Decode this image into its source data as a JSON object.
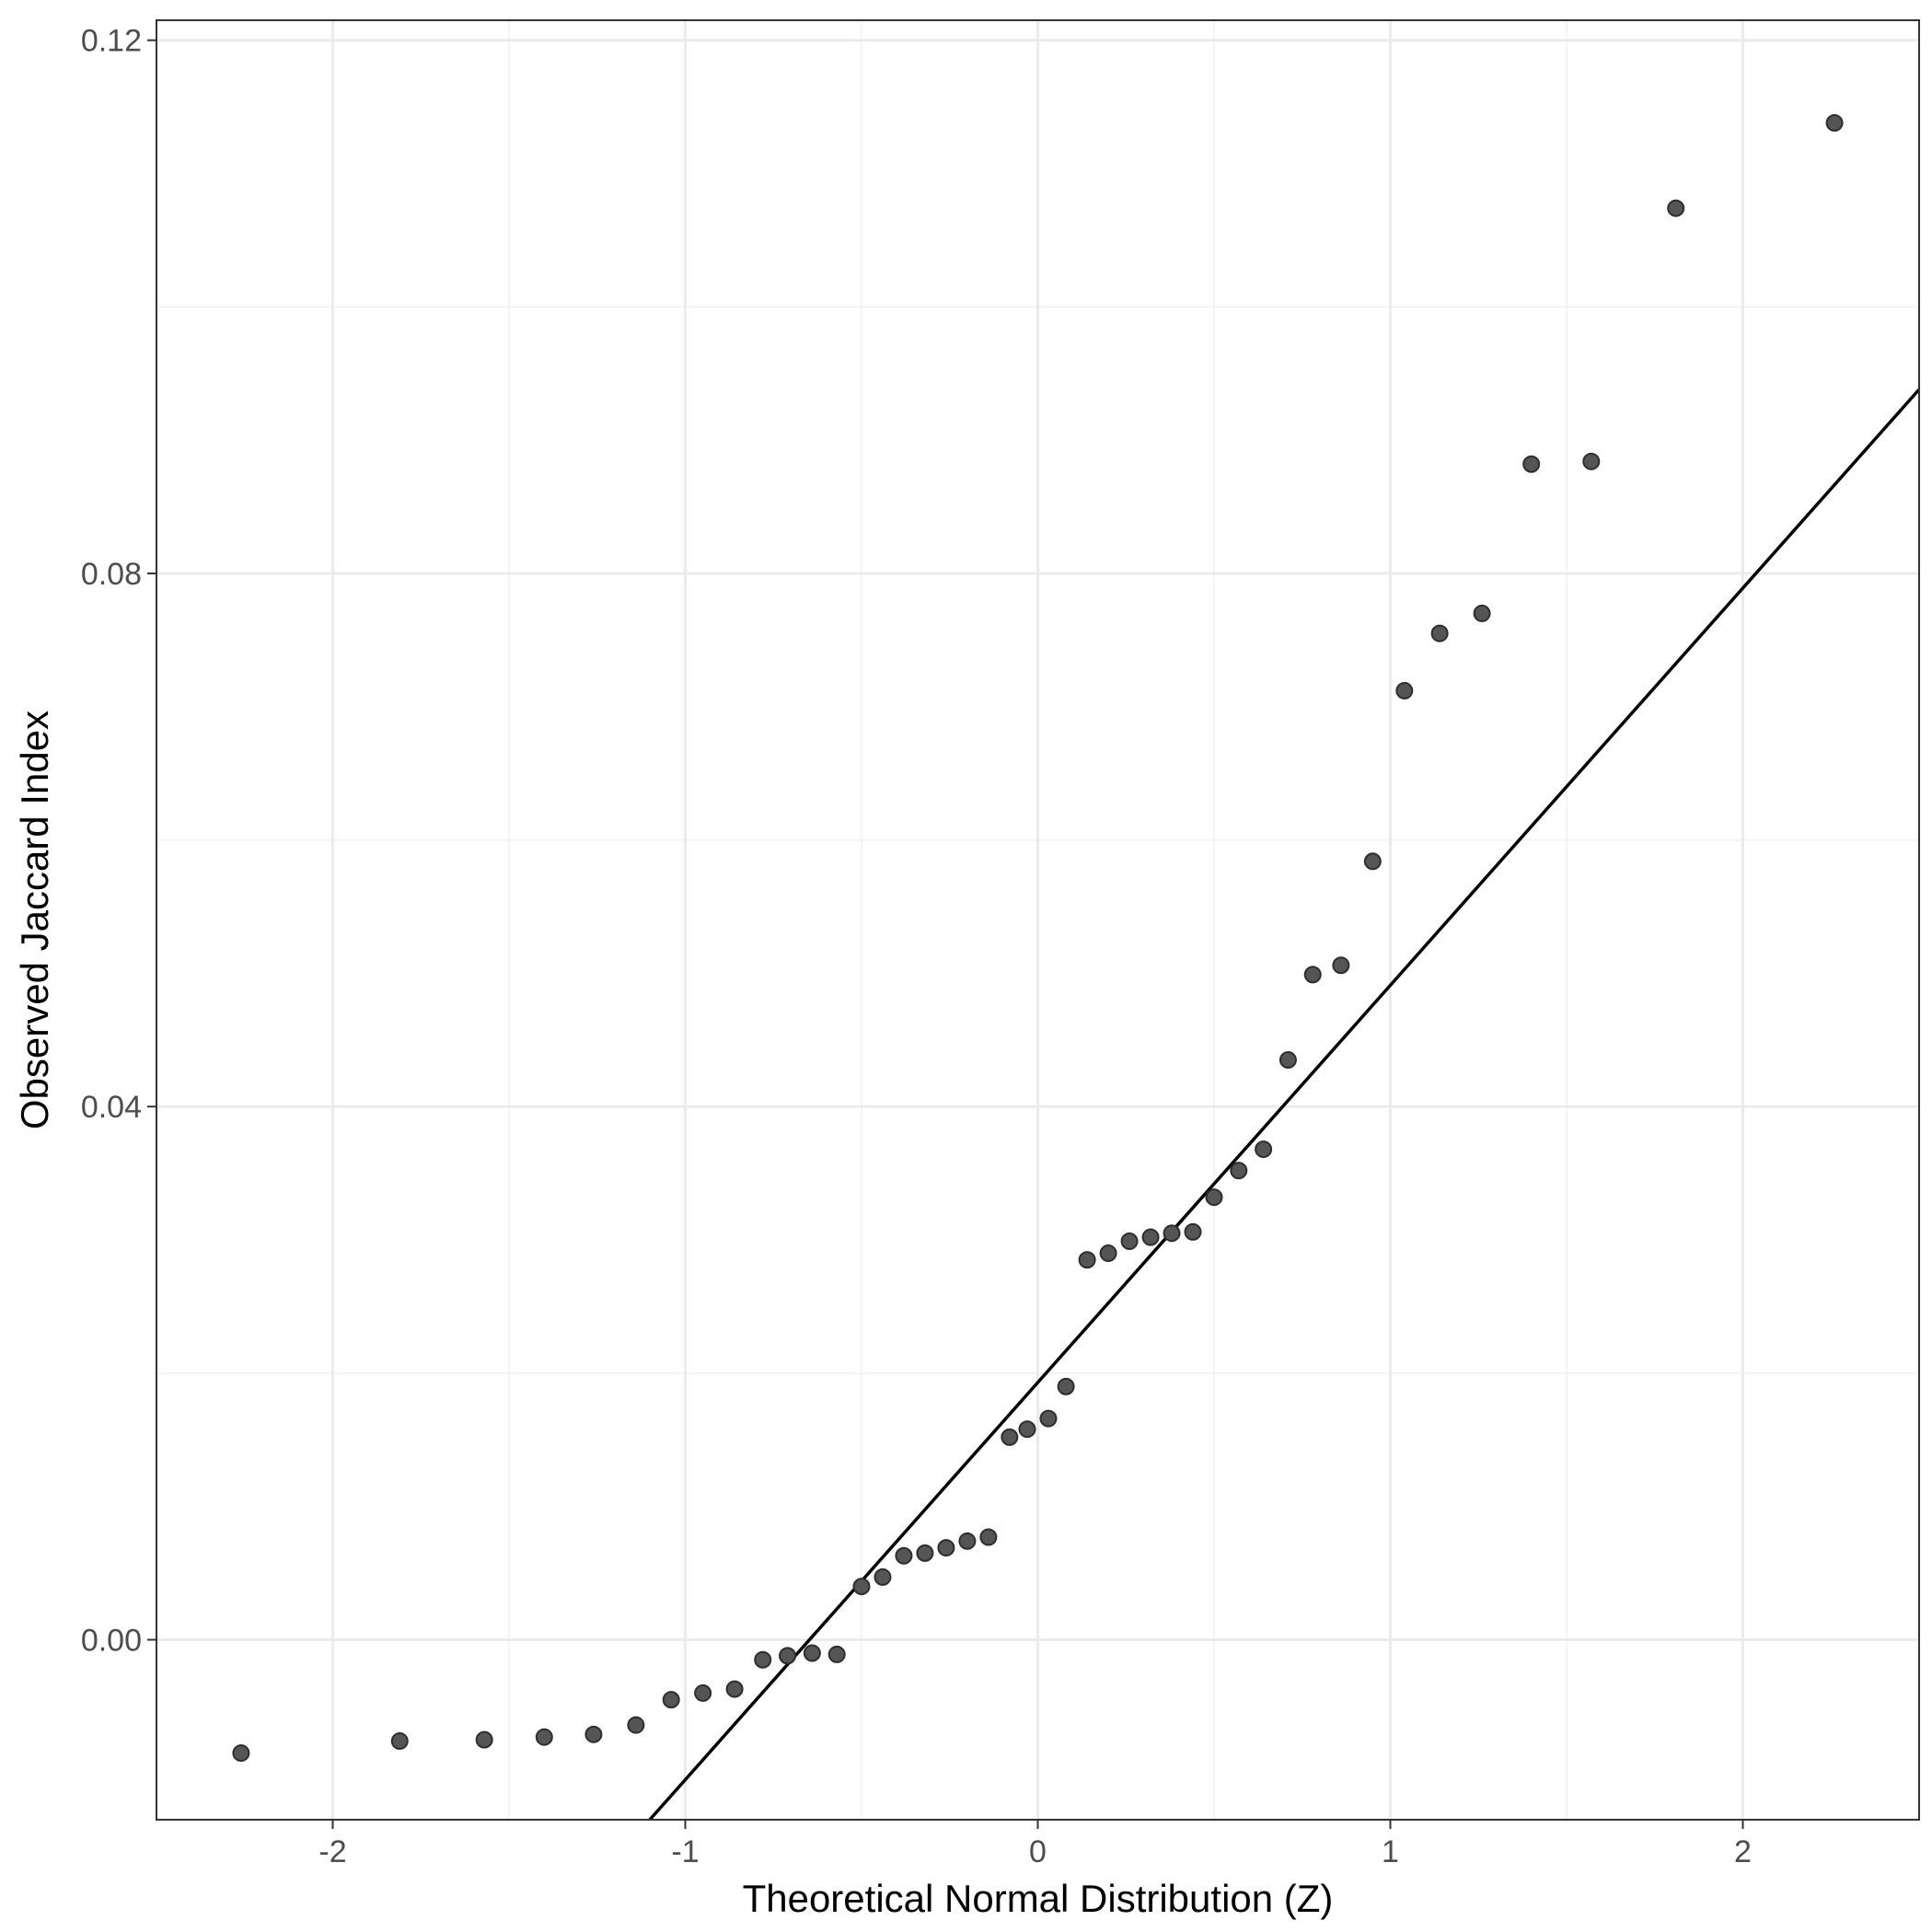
{
  "chart_data": {
    "type": "scatter",
    "title": "",
    "xlabel": "Theoretical Normal Distribution (Z)",
    "ylabel": "Observed Jaccard Index",
    "xlim": [
      -2.5,
      2.5
    ],
    "ylim": [
      -0.0135,
      0.1215
    ],
    "x_ticks": [
      -2,
      -1,
      0,
      1,
      2
    ],
    "x_tick_labels": [
      "-2",
      "-1",
      "0",
      "1",
      "2"
    ],
    "y_ticks": [
      0.0,
      0.04,
      0.08,
      0.12
    ],
    "y_tick_labels": [
      "0.00",
      "0.04",
      "0.08",
      "0.12"
    ],
    "x_minor_ticks": [
      -2.5,
      -1.5,
      -0.5,
      0.5,
      1.5,
      2.5
    ],
    "y_minor_ticks": [
      0.02,
      0.06,
      0.1
    ],
    "grid": true,
    "theme": "bw",
    "point_color": "#555555",
    "point_stroke": "#2e2e2e",
    "line_color": "#000000",
    "reference_line": {
      "type": "qq-line",
      "intercept": 0.0193,
      "slope": 0.0298
    },
    "series": [
      {
        "x": [
          -2.26,
          -1.81,
          -1.57,
          -1.4,
          -1.26,
          -1.14,
          -1.04,
          -0.95,
          -0.86,
          -0.78,
          -0.71,
          -0.64,
          -0.57,
          -0.5,
          -0.44,
          -0.38,
          -0.32,
          -0.26,
          -0.2,
          -0.14,
          -0.08,
          -0.03,
          0.03,
          0.08,
          0.14,
          0.2,
          0.26,
          0.32,
          0.38,
          0.44,
          0.5,
          0.57,
          0.64,
          0.71,
          0.78,
          0.86,
          0.95,
          1.04,
          1.14,
          1.26,
          1.4,
          1.57,
          1.81,
          2.26
        ],
        "y": [
          -0.0085,
          -0.0076,
          -0.0075,
          -0.0073,
          -0.0071,
          -0.0064,
          -0.0045,
          -0.004,
          -0.0037,
          -0.0015,
          -0.0012,
          -0.001,
          -0.0011,
          0.004,
          0.0047,
          0.0063,
          0.0065,
          0.0069,
          0.0074,
          0.0077,
          0.0152,
          0.0158,
          0.0166,
          0.019,
          0.0285,
          0.029,
          0.0299,
          0.0302,
          0.0305,
          0.0306,
          0.0332,
          0.0352,
          0.0368,
          0.0435,
          0.0499,
          0.0506,
          0.0584,
          0.0712,
          0.0755,
          0.077,
          0.0882,
          0.0884,
          0.1074,
          0.1138
        ]
      }
    ]
  }
}
